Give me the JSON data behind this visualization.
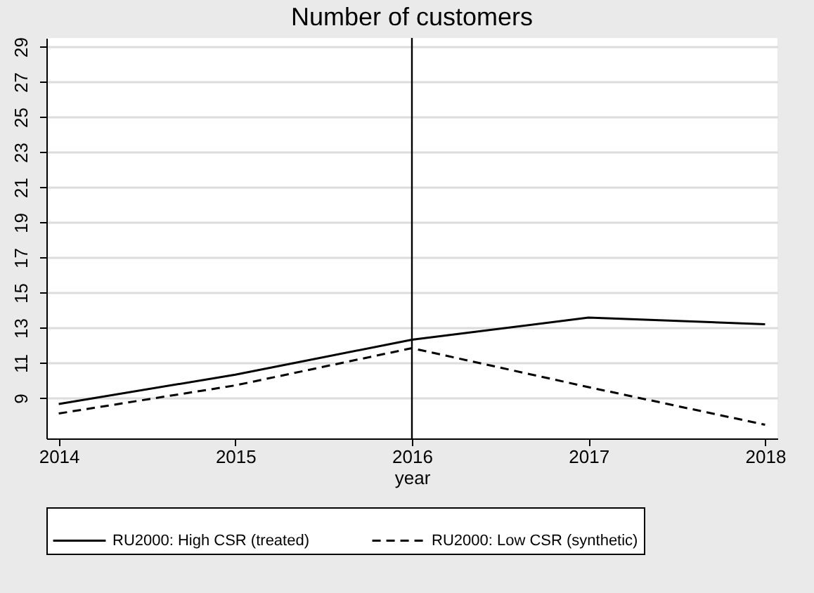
{
  "chart_data": {
    "type": "line",
    "title": "Number of customers",
    "xlabel": "year",
    "x": [
      2014,
      2015,
      2016,
      2017,
      2018
    ],
    "series": [
      {
        "name": "RU2000: High CSR (treated)",
        "color": "#000000",
        "line_style": "solid",
        "values": [
          8.66,
          10.33,
          12.32,
          13.58,
          13.2
        ]
      },
      {
        "name": "RU2000: Low CSR (synthetic)",
        "color": "#000000",
        "line_style": "dashed",
        "values": [
          8.12,
          9.72,
          11.84,
          9.62,
          7.48
        ]
      }
    ],
    "xlim": [
      2013.93,
      2018.07
    ],
    "xticks": [
      2014,
      2015,
      2016,
      2017,
      2018
    ],
    "ylim": [
      6.7,
      29.5
    ],
    "yticks": [
      9,
      11,
      13,
      15,
      17,
      19,
      21,
      23,
      25,
      27,
      29
    ],
    "ref_lines": [
      {
        "axis": "x",
        "value": 2016,
        "color": "#000000"
      }
    ],
    "grid": "y",
    "legend": "bottom",
    "marker": "none"
  }
}
